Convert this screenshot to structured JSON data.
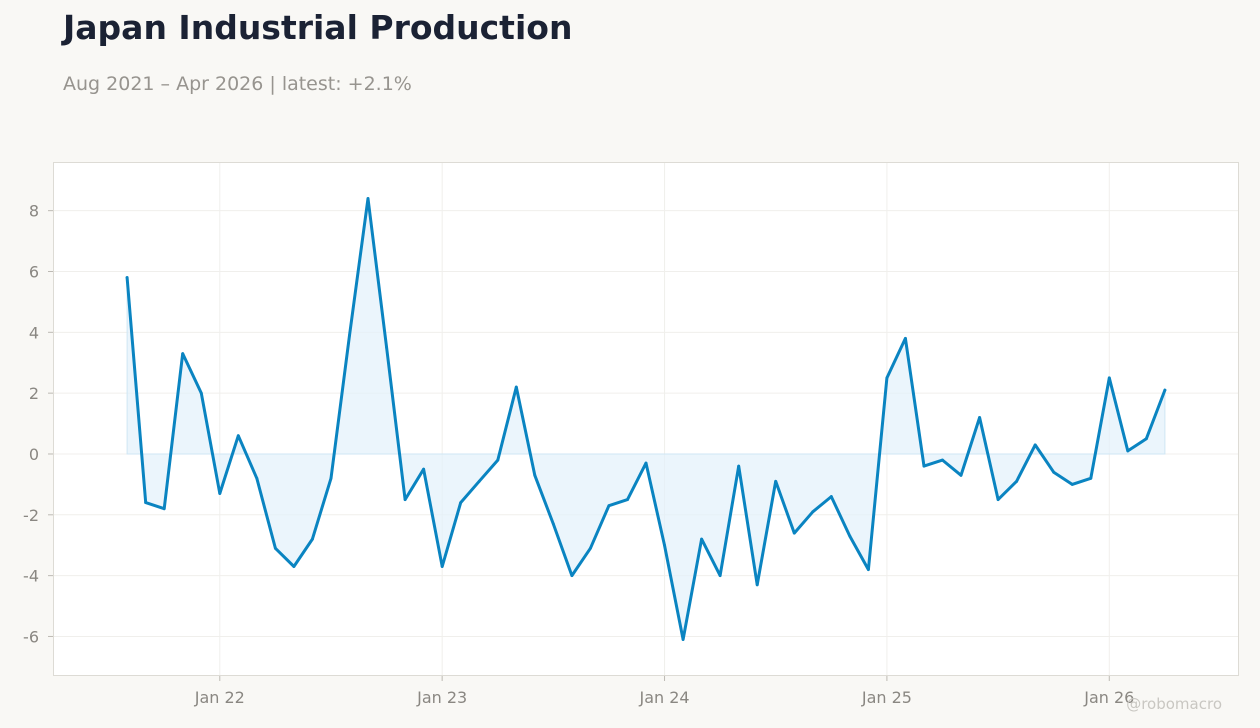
{
  "header": {
    "title": "Japan Industrial Production",
    "subtitle": "Aug 2021 – Apr 2026 | latest: +2.1%"
  },
  "watermark": "@robomacro",
  "colors": {
    "line": "#0a84c1",
    "fill": "#e2f1fb",
    "plot_background": "#ffffff",
    "plot_border": "#dddbd5",
    "grid": "#f0efec"
  },
  "chart_data": {
    "type": "area",
    "title": "Japan Industrial Production",
    "subtitle": "Aug 2021 – Apr 2026 | latest: +2.1%",
    "xlabel": "",
    "ylabel": "",
    "x_start": "2021-08",
    "x_end": "2026-04",
    "xlim": [
      "2021-04",
      "2026-08"
    ],
    "ylim": [
      -7.3,
      9.6
    ],
    "grid": true,
    "baseline": 0,
    "x_ticks": [
      {
        "date": "2022-01",
        "label": "Jan 22"
      },
      {
        "date": "2023-01",
        "label": "Jan 23"
      },
      {
        "date": "2024-01",
        "label": "Jan 24"
      },
      {
        "date": "2025-01",
        "label": "Jan 25"
      },
      {
        "date": "2026-01",
        "label": "Jan 26"
      }
    ],
    "y_ticks": [
      8,
      6,
      4,
      2,
      0,
      -2,
      -4,
      -6
    ],
    "series": [
      {
        "values": [
          {
            "date": "2021-08",
            "value": 5.8
          },
          {
            "date": "2021-09",
            "value": -1.6
          },
          {
            "date": "2021-10",
            "value": -1.8
          },
          {
            "date": "2021-11",
            "value": 3.3
          },
          {
            "date": "2021-12",
            "value": 2.0
          },
          {
            "date": "2022-01",
            "value": -1.3
          },
          {
            "date": "2022-02",
            "value": 0.6
          },
          {
            "date": "2022-03",
            "value": -0.8
          },
          {
            "date": "2022-04",
            "value": -3.1
          },
          {
            "date": "2022-05",
            "value": -3.7
          },
          {
            "date": "2022-06",
            "value": -2.8
          },
          {
            "date": "2022-07",
            "value": -0.8
          },
          {
            "date": "2022-08",
            "value": 3.9
          },
          {
            "date": "2022-09",
            "value": 8.4
          },
          {
            "date": "2022-10",
            "value": 3.5
          },
          {
            "date": "2022-11",
            "value": -1.5
          },
          {
            "date": "2022-12",
            "value": -0.5
          },
          {
            "date": "2023-01",
            "value": -3.7
          },
          {
            "date": "2023-02",
            "value": -1.6
          },
          {
            "date": "2023-03",
            "value": -0.9
          },
          {
            "date": "2023-04",
            "value": -0.2
          },
          {
            "date": "2023-05",
            "value": 2.2
          },
          {
            "date": "2023-06",
            "value": -0.7
          },
          {
            "date": "2023-07",
            "value": -2.3
          },
          {
            "date": "2023-08",
            "value": -4.0
          },
          {
            "date": "2023-09",
            "value": -3.1
          },
          {
            "date": "2023-10",
            "value": -1.7
          },
          {
            "date": "2023-11",
            "value": -1.5
          },
          {
            "date": "2023-12",
            "value": -0.3
          },
          {
            "date": "2024-01",
            "value": -3.0
          },
          {
            "date": "2024-02",
            "value": -6.1
          },
          {
            "date": "2024-03",
            "value": -2.8
          },
          {
            "date": "2024-04",
            "value": -4.0
          },
          {
            "date": "2024-05",
            "value": -0.4
          },
          {
            "date": "2024-06",
            "value": -4.3
          },
          {
            "date": "2024-07",
            "value": -0.9
          },
          {
            "date": "2024-08",
            "value": -2.6
          },
          {
            "date": "2024-09",
            "value": -1.9
          },
          {
            "date": "2024-10",
            "value": -1.4
          },
          {
            "date": "2024-11",
            "value": -2.7
          },
          {
            "date": "2024-12",
            "value": -3.8
          },
          {
            "date": "2025-01",
            "value": 2.5
          },
          {
            "date": "2025-02",
            "value": 3.8
          },
          {
            "date": "2025-03",
            "value": -0.4
          },
          {
            "date": "2025-04",
            "value": -0.2
          },
          {
            "date": "2025-05",
            "value": -0.7
          },
          {
            "date": "2025-06",
            "value": 1.2
          },
          {
            "date": "2025-07",
            "value": -1.5
          },
          {
            "date": "2025-08",
            "value": -0.9
          },
          {
            "date": "2025-09",
            "value": 0.3
          },
          {
            "date": "2025-10",
            "value": -0.6
          },
          {
            "date": "2025-11",
            "value": -1.0
          },
          {
            "date": "2025-12",
            "value": -0.8
          },
          {
            "date": "2026-01",
            "value": 2.5
          },
          {
            "date": "2026-02",
            "value": 0.1
          },
          {
            "date": "2026-03",
            "value": 0.5
          },
          {
            "date": "2026-04",
            "value": 2.1
          }
        ]
      }
    ]
  }
}
